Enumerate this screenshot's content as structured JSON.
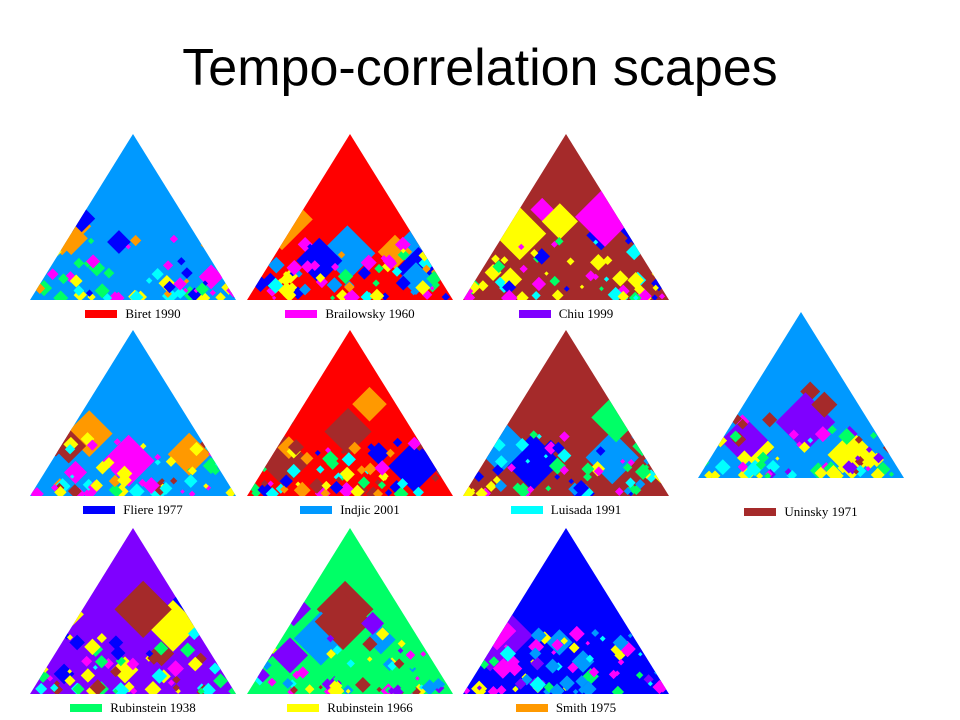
{
  "title": "Tempo-correlation scapes",
  "colors": {
    "red": "#ff0000",
    "magenta": "#ff00ff",
    "purple": "#7f00ff",
    "blue": "#0000ff",
    "skyblue": "#0099ff",
    "cyan": "#00ffff",
    "darkred": "#a52a2a",
    "green": "#00ff66",
    "yellow": "#ffff00",
    "orange": "#ff9900"
  },
  "scapes": [
    {
      "label": "Biret 1990",
      "legend_color": "#ff0000",
      "dominant": "#0099ff",
      "secondary": [
        "#ff9900",
        "#ff00ff",
        "#0000ff"
      ]
    },
    {
      "label": "Brailowsky 1960",
      "legend_color": "#ff00ff",
      "dominant": "#ff0000",
      "secondary": [
        "#0099ff",
        "#ff9900",
        "#0000ff"
      ]
    },
    {
      "label": "Chiu 1999",
      "legend_color": "#7f00ff",
      "dominant": "#a52a2a",
      "secondary": [
        "#ffff00",
        "#0000ff",
        "#ff00ff"
      ]
    },
    {
      "label": "Fliere 1977",
      "legend_color": "#0000ff",
      "dominant": "#0099ff",
      "secondary": [
        "#a52a2a",
        "#ff9900",
        "#ff00ff"
      ]
    },
    {
      "label": "Indjic 2001",
      "legend_color": "#0099ff",
      "dominant": "#ff0000",
      "secondary": [
        "#a52a2a",
        "#0000ff",
        "#ff9900"
      ]
    },
    {
      "label": "Luisada 1991",
      "legend_color": "#00ffff",
      "dominant": "#a52a2a",
      "secondary": [
        "#0099ff",
        "#0000ff",
        "#00ff66"
      ]
    },
    {
      "label": "Uninsky 1971",
      "legend_color": "#a52a2a",
      "dominant": "#0099ff",
      "secondary": [
        "#7f00ff",
        "#ffff00",
        "#a52a2a"
      ]
    },
    {
      "label": "Rubinstein 1938",
      "legend_color": "#00ff66",
      "dominant": "#7f00ff",
      "secondary": [
        "#ffff00",
        "#a52a2a",
        "#0000ff"
      ]
    },
    {
      "label": "Rubinstein 1966",
      "legend_color": "#ffff00",
      "dominant": "#00ff66",
      "secondary": [
        "#7f00ff",
        "#a52a2a",
        "#0099ff"
      ]
    },
    {
      "label": "Smith 1975",
      "legend_color": "#ff9900",
      "dominant": "#0000ff",
      "secondary": [
        "#ff00ff",
        "#7f00ff",
        "#0099ff"
      ]
    }
  ]
}
